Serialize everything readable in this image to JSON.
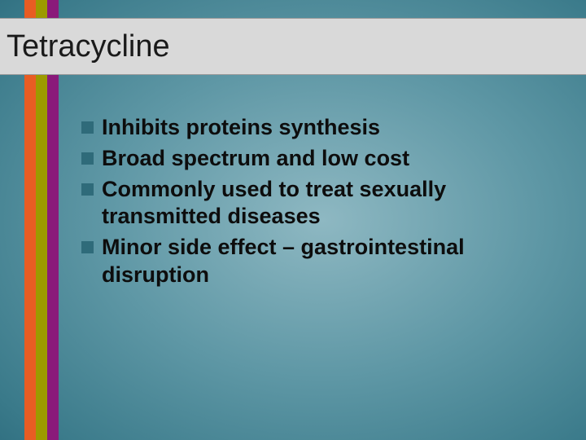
{
  "slide": {
    "title": "Tetracycline",
    "title_bar_bg": "#d9d9d9",
    "title_color": "#1a1a1a",
    "title_fontsize": 38,
    "bullet_marker_color": "#2f6b7a",
    "bullet_text_color": "#0d0d0d",
    "bullet_fontsize": 27,
    "bullets": [
      "Inhibits proteins synthesis",
      "Broad spectrum and low cost",
      "Commonly used to treat sexually transmitted diseases",
      "Minor side effect – gastrointestinal disruption"
    ],
    "stripes": [
      {
        "color": "#e85c23"
      },
      {
        "color": "#9c9a00"
      },
      {
        "color": "#8a1a7a"
      }
    ],
    "background_gradient": {
      "type": "radial",
      "center_color": "#8eb8c2",
      "edge_color": "#0c3a4b"
    }
  }
}
